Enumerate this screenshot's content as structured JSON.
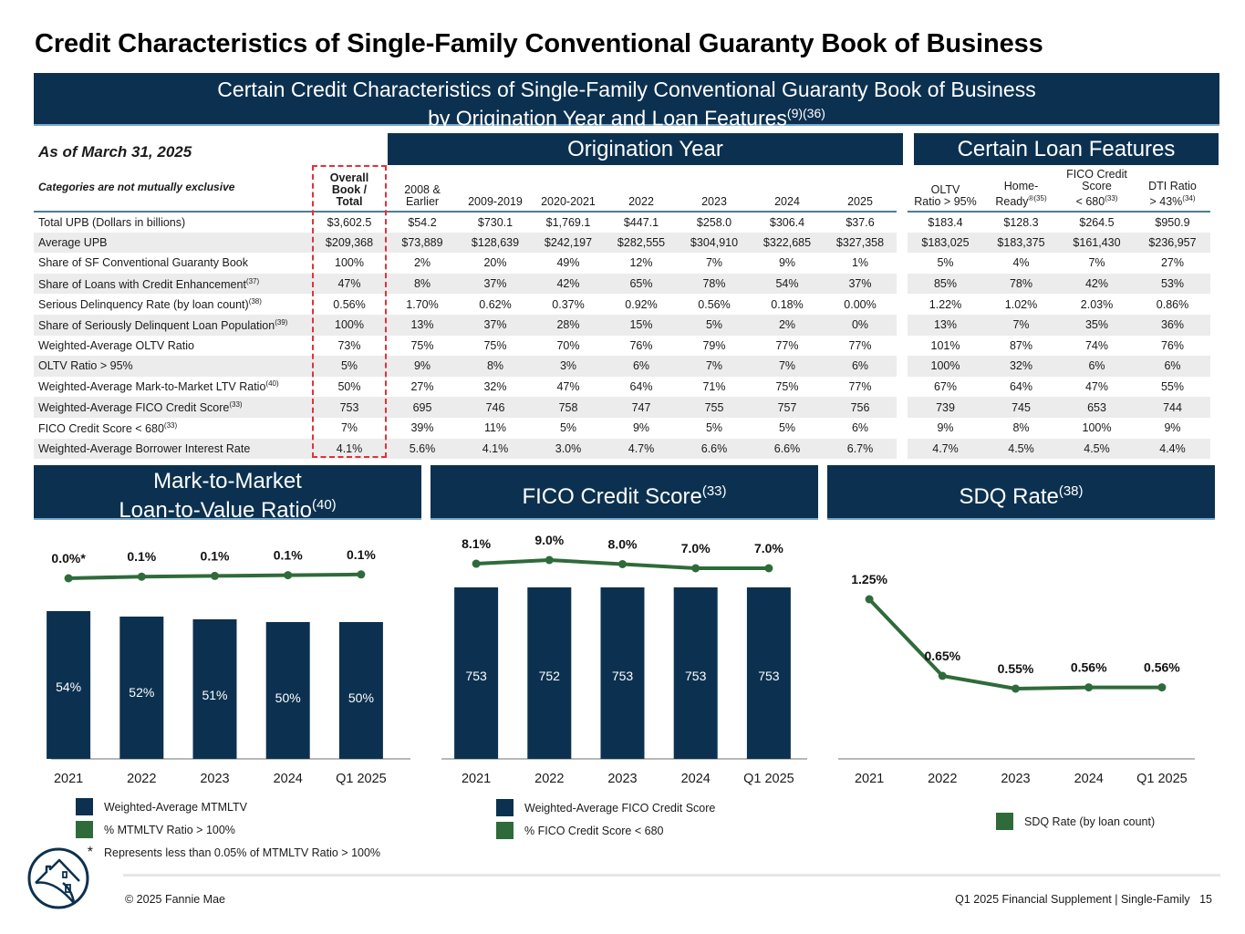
{
  "page": {
    "title": "Credit Characteristics of Single-Family Conventional Guaranty Book of Business",
    "banner_line1": "Certain Credit Characteristics of Single-Family Conventional Guaranty Book of Business",
    "banner_line2": "by Origination Year and Loan Features",
    "banner_sup": "(9)(36)",
    "as_of": "As of March 31, 2025",
    "section_origination": "Origination Year",
    "section_features": "Certain Loan Features"
  },
  "table": {
    "corner_label": "Categories are not mutually exclusive",
    "total_header": [
      "Overall",
      "Book /",
      "Total"
    ],
    "origination_headers": [
      {
        "line1": "2008 &",
        "line2": "Earlier"
      },
      {
        "line1": "",
        "line2": "2009-2019"
      },
      {
        "line1": "",
        "line2": "2020-2021"
      },
      {
        "line1": "",
        "line2": "2022"
      },
      {
        "line1": "",
        "line2": "2023"
      },
      {
        "line1": "",
        "line2": "2024"
      },
      {
        "line1": "",
        "line2": "2025"
      }
    ],
    "feature_headers": [
      {
        "line1": "",
        "line2": "OLTV",
        "line3": "Ratio > 95%",
        "sup": ""
      },
      {
        "line1": "",
        "line2": "Home-",
        "line3": "Ready",
        "sup": "®(35)"
      },
      {
        "line1": "FICO Credit",
        "line2": "Score",
        "line3": "< 680",
        "sup": "(33)"
      },
      {
        "line1": "",
        "line2": "DTI Ratio",
        "line3": "> 43%",
        "sup": "(34)"
      }
    ],
    "rows": [
      {
        "label": "Total UPB (Dollars in billions)",
        "sup": "",
        "total": "$3,602.5",
        "origination": [
          "$54.2",
          "$730.1",
          "$1,769.1",
          "$447.1",
          "$258.0",
          "$306.4",
          "$37.6"
        ],
        "features": [
          "$183.4",
          "$128.3",
          "$264.5",
          "$950.9"
        ]
      },
      {
        "label": "Average UPB",
        "sup": "",
        "total": "$209,368",
        "origination": [
          "$73,889",
          "$128,639",
          "$242,197",
          "$282,555",
          "$304,910",
          "$322,685",
          "$327,358"
        ],
        "features": [
          "$183,025",
          "$183,375",
          "$161,430",
          "$236,957"
        ]
      },
      {
        "label": "Share of SF Conventional Guaranty Book",
        "sup": "",
        "total": "100%",
        "origination": [
          "2%",
          "20%",
          "49%",
          "12%",
          "7%",
          "9%",
          "1%"
        ],
        "features": [
          "5%",
          "4%",
          "7%",
          "27%"
        ]
      },
      {
        "label": "Share of Loans with Credit Enhancement",
        "sup": "(37)",
        "total": "47%",
        "origination": [
          "8%",
          "37%",
          "42%",
          "65%",
          "78%",
          "54%",
          "37%"
        ],
        "features": [
          "85%",
          "78%",
          "42%",
          "53%"
        ]
      },
      {
        "label": "Serious Delinquency Rate (by loan count)",
        "sup": "(38)",
        "total": "0.56%",
        "origination": [
          "1.70%",
          "0.62%",
          "0.37%",
          "0.92%",
          "0.56%",
          "0.18%",
          "0.00%"
        ],
        "features": [
          "1.22%",
          "1.02%",
          "2.03%",
          "0.86%"
        ]
      },
      {
        "label": "Share of Seriously Delinquent Loan Population",
        "sup": "(39)",
        "total": "100%",
        "origination": [
          "13%",
          "37%",
          "28%",
          "15%",
          "5%",
          "2%",
          "0%"
        ],
        "features": [
          "13%",
          "7%",
          "35%",
          "36%"
        ]
      },
      {
        "label": "Weighted-Average OLTV Ratio",
        "sup": "",
        "total": "73%",
        "origination": [
          "75%",
          "75%",
          "70%",
          "76%",
          "79%",
          "77%",
          "77%"
        ],
        "features": [
          "101%",
          "87%",
          "74%",
          "76%"
        ]
      },
      {
        "label": "OLTV Ratio > 95%",
        "sup": "",
        "total": "5%",
        "origination": [
          "9%",
          "8%",
          "3%",
          "6%",
          "7%",
          "7%",
          "6%"
        ],
        "features": [
          "100%",
          "32%",
          "6%",
          "6%"
        ]
      },
      {
        "label": "Weighted-Average Mark-to-Market LTV Ratio",
        "sup": "(40)",
        "total": "50%",
        "origination": [
          "27%",
          "32%",
          "47%",
          "64%",
          "71%",
          "75%",
          "77%"
        ],
        "features": [
          "67%",
          "64%",
          "47%",
          "55%"
        ]
      },
      {
        "label": "Weighted-Average FICO Credit Score",
        "sup": "(33)",
        "total": "753",
        "origination": [
          "695",
          "746",
          "758",
          "747",
          "755",
          "757",
          "756"
        ],
        "features": [
          "739",
          "745",
          "653",
          "744"
        ]
      },
      {
        "label": "FICO Credit Score < 680",
        "sup": "(33)",
        "total": "7%",
        "origination": [
          "39%",
          "11%",
          "5%",
          "9%",
          "5%",
          "5%",
          "6%"
        ],
        "features": [
          "9%",
          "8%",
          "100%",
          "9%"
        ]
      },
      {
        "label": "Weighted-Average Borrower Interest Rate",
        "sup": "",
        "total": "4.1%",
        "origination": [
          "5.6%",
          "4.1%",
          "3.0%",
          "4.7%",
          "6.6%",
          "6.6%",
          "6.7%"
        ],
        "features": [
          "4.7%",
          "4.5%",
          "4.5%",
          "4.4%"
        ]
      }
    ]
  },
  "colors": {
    "navy": "#0c3150",
    "green": "#2f6b3a",
    "highlight_dash": "#e0323c"
  },
  "chart_data": [
    {
      "type": "bar",
      "title": "Mark-to-Market Loan-to-Value Ratio",
      "title_line1": "Mark-to-Market",
      "title_line2": "Loan-to-Value Ratio",
      "title_sup": "(40)",
      "categories": [
        "2021",
        "2022",
        "2023",
        "2024",
        "Q1 2025"
      ],
      "series": [
        {
          "name": "Weighted-Average MTMLTV",
          "kind": "bar",
          "values": [
            54,
            52,
            51,
            50,
            50
          ],
          "labels": [
            "54%",
            "52%",
            "51%",
            "50%",
            "50%"
          ],
          "color": "#0c3150"
        },
        {
          "name": "% MTMLTV Ratio > 100%",
          "kind": "line",
          "values": [
            0.0,
            0.1,
            0.1,
            0.1,
            0.1
          ],
          "labels": [
            "0.0%*",
            "0.1%",
            "0.1%",
            "0.1%",
            "0.1%"
          ],
          "color": "#2f6b3a"
        }
      ],
      "footnote_marker": "*",
      "footnote": "Represents less than 0.05% of MTMLTV Ratio > 100%",
      "xlabel": "",
      "ylabel": ""
    },
    {
      "type": "bar",
      "title": "FICO Credit Score",
      "title_sup": "(33)",
      "categories": [
        "2021",
        "2022",
        "2023",
        "2024",
        "Q1 2025"
      ],
      "series": [
        {
          "name": "Weighted-Average FICO Credit Score",
          "kind": "bar",
          "values": [
            753,
            752,
            753,
            753,
            753
          ],
          "labels": [
            "753",
            "752",
            "753",
            "753",
            "753"
          ],
          "color": "#0c3150"
        },
        {
          "name": "% FICO Credit Score < 680",
          "kind": "line",
          "values": [
            8.1,
            9.0,
            8.0,
            7.0,
            7.0
          ],
          "labels": [
            "8.1%",
            "9.0%",
            "8.0%",
            "7.0%",
            "7.0%"
          ],
          "color": "#2f6b3a"
        }
      ],
      "xlabel": "",
      "ylabel": ""
    },
    {
      "type": "line",
      "title": "SDQ Rate",
      "title_sup": "(38)",
      "categories": [
        "2021",
        "2022",
        "2023",
        "2024",
        "Q1 2025"
      ],
      "series": [
        {
          "name": "SDQ Rate (by loan count)",
          "kind": "line",
          "values": [
            1.25,
            0.65,
            0.55,
            0.56,
            0.56
          ],
          "labels": [
            "1.25%",
            "0.65%",
            "0.55%",
            "0.56%",
            "0.56%"
          ],
          "color": "#2f6b3a"
        }
      ],
      "xlabel": "",
      "ylabel": ""
    }
  ],
  "footer": {
    "copyright": "© 2025 Fannie Mae",
    "right_text": "Q1 2025 Financial Supplement | Single-Family",
    "page_number": "15"
  }
}
